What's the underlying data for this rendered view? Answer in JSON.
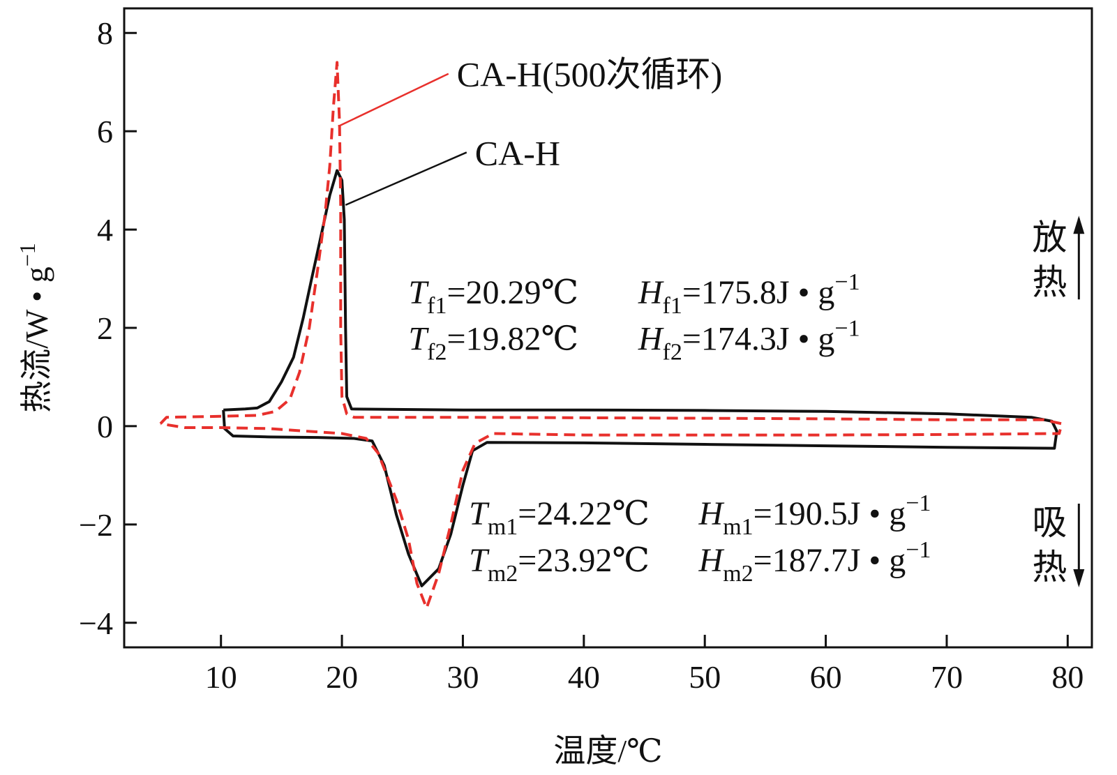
{
  "chart_data": {
    "type": "line",
    "xlabel": "温度/℃",
    "ylabel_main": "热流/W • g",
    "ylabel_sup": "−1",
    "xlim": [
      2,
      82
    ],
    "ylim": [
      -4.5,
      8.5
    ],
    "x_ticks": [
      10,
      20,
      30,
      40,
      50,
      60,
      70,
      80
    ],
    "y_ticks": [
      8,
      6,
      4,
      2,
      0,
      -2,
      -4
    ],
    "y_tick_labels": [
      "8",
      "6",
      "4",
      "2",
      "0",
      "−2",
      "−4"
    ],
    "grid": false,
    "series": [
      {
        "name": "CA-H",
        "color": "#111111",
        "style": "solid",
        "points": [
          [
            10.2,
            0.33
          ],
          [
            12.0,
            0.35
          ],
          [
            13.0,
            0.37
          ],
          [
            14.0,
            0.5
          ],
          [
            15.0,
            0.9
          ],
          [
            16.0,
            1.4
          ],
          [
            16.8,
            2.2
          ],
          [
            17.5,
            3.0
          ],
          [
            18.3,
            3.9
          ],
          [
            19.0,
            4.7
          ],
          [
            19.6,
            5.2
          ],
          [
            20.0,
            5.0
          ],
          [
            20.2,
            4.2
          ],
          [
            20.3,
            2.0
          ],
          [
            20.4,
            0.6
          ],
          [
            20.8,
            0.35
          ],
          [
            30.0,
            0.33
          ],
          [
            40.0,
            0.33
          ],
          [
            50.0,
            0.32
          ],
          [
            60.0,
            0.3
          ],
          [
            70.0,
            0.25
          ],
          [
            77.0,
            0.18
          ],
          [
            78.7,
            0.1
          ],
          [
            79.1,
            -0.1
          ],
          [
            78.9,
            -0.45
          ],
          [
            70.0,
            -0.43
          ],
          [
            60.0,
            -0.4
          ],
          [
            50.0,
            -0.37
          ],
          [
            40.0,
            -0.34
          ],
          [
            32.0,
            -0.33
          ],
          [
            30.8,
            -0.5
          ],
          [
            30.0,
            -1.2
          ],
          [
            29.0,
            -2.2
          ],
          [
            28.0,
            -2.9
          ],
          [
            26.6,
            -3.25
          ],
          [
            25.5,
            -2.6
          ],
          [
            24.5,
            -1.8
          ],
          [
            23.5,
            -0.8
          ],
          [
            22.5,
            -0.3
          ],
          [
            21.0,
            -0.25
          ],
          [
            18.0,
            -0.23
          ],
          [
            14.0,
            -0.22
          ],
          [
            11.0,
            -0.2
          ],
          [
            10.3,
            -0.05
          ],
          [
            10.2,
            0.33
          ]
        ]
      },
      {
        "name": "CA-H(500次循环)",
        "color": "#e8302c",
        "style": "dashed",
        "points": [
          [
            5.0,
            0.05
          ],
          [
            5.5,
            0.18
          ],
          [
            10.0,
            0.2
          ],
          [
            13.0,
            0.22
          ],
          [
            14.5,
            0.3
          ],
          [
            15.7,
            0.55
          ],
          [
            16.5,
            1.1
          ],
          [
            17.3,
            2.0
          ],
          [
            18.0,
            3.2
          ],
          [
            18.6,
            4.3
          ],
          [
            19.0,
            5.3
          ],
          [
            19.3,
            6.5
          ],
          [
            19.6,
            7.4
          ],
          [
            19.8,
            6.2
          ],
          [
            19.9,
            4.5
          ],
          [
            19.9,
            2.0
          ],
          [
            20.0,
            0.6
          ],
          [
            20.4,
            0.25
          ],
          [
            21.0,
            0.18
          ],
          [
            30.0,
            0.18
          ],
          [
            40.0,
            0.17
          ],
          [
            50.0,
            0.16
          ],
          [
            60.0,
            0.15
          ],
          [
            70.0,
            0.13
          ],
          [
            78.0,
            0.13
          ],
          [
            79.5,
            0.05
          ],
          [
            79.3,
            -0.15
          ],
          [
            70.0,
            -0.17
          ],
          [
            60.0,
            -0.18
          ],
          [
            50.0,
            -0.18
          ],
          [
            40.0,
            -0.18
          ],
          [
            32.5,
            -0.15
          ],
          [
            31.0,
            -0.35
          ],
          [
            30.0,
            -0.9
          ],
          [
            29.0,
            -2.0
          ],
          [
            28.0,
            -3.0
          ],
          [
            27.0,
            -3.7
          ],
          [
            26.2,
            -3.2
          ],
          [
            25.5,
            -2.3
          ],
          [
            24.5,
            -1.5
          ],
          [
            23.0,
            -0.55
          ],
          [
            22.0,
            -0.25
          ],
          [
            20.0,
            -0.15
          ],
          [
            17.0,
            -0.1
          ],
          [
            14.0,
            -0.05
          ],
          [
            10.0,
            -0.03
          ],
          [
            7.0,
            -0.03
          ],
          [
            5.0,
            0.05
          ]
        ]
      }
    ],
    "series_labels": [
      {
        "series": 1,
        "text": "CA-H(500次循环)",
        "anchor": [
          19.7,
          6.1
        ],
        "label_at": [
          29.5,
          7.0
        ]
      },
      {
        "series": 0,
        "text": "CA-H",
        "anchor": [
          20.3,
          4.5
        ],
        "label_at": [
          31.0,
          5.4
        ]
      }
    ],
    "annotations": [
      {
        "sym": "T",
        "sub": "f1",
        "val": "=20.29℃",
        "at": [
          25.5,
          2.5
        ]
      },
      {
        "sym": "T",
        "sub": "f2",
        "val": "=19.82℃",
        "at": [
          25.5,
          1.55
        ]
      },
      {
        "sym": "H",
        "sub": "f1",
        "val": "=175.8J • g",
        "sup": "−1",
        "at": [
          44.5,
          2.5
        ]
      },
      {
        "sym": "H",
        "sub": "f2",
        "val": "=174.3J • g",
        "sup": "−1",
        "at": [
          44.5,
          1.55
        ]
      },
      {
        "sym": "T",
        "sub": "m1",
        "val": "=24.22℃",
        "at": [
          30.5,
          -2.0
        ]
      },
      {
        "sym": "T",
        "sub": "m2",
        "val": "=23.92℃",
        "at": [
          30.5,
          -2.95
        ]
      },
      {
        "sym": "H",
        "sub": "m1",
        "val": "=190.5J • g",
        "sup": "−1",
        "at": [
          49.5,
          -2.0
        ]
      },
      {
        "sym": "H",
        "sub": "m2",
        "val": "=187.7J • g",
        "sup": "−1",
        "at": [
          49.5,
          -2.95
        ]
      }
    ],
    "side_labels": [
      {
        "chars": [
          "放",
          "热"
        ],
        "direction": "up",
        "at": [
          78.5,
          3.6
        ]
      },
      {
        "chars": [
          "吸",
          "热"
        ],
        "direction": "down",
        "at": [
          78.5,
          -2.2
        ]
      }
    ]
  }
}
